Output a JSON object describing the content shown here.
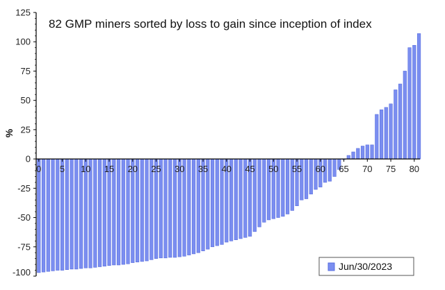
{
  "chart_data": {
    "type": "bar",
    "title": "82 GMP miners sorted by loss to gain since inception of index",
    "xlabel": "",
    "ylabel": "%",
    "ylim": [
      -100,
      125
    ],
    "yticks": [
      -100,
      -75,
      -50,
      -25,
      0,
      25,
      50,
      75,
      100,
      125
    ],
    "xlim": [
      0,
      81
    ],
    "xticks": [
      0,
      5,
      10,
      15,
      20,
      25,
      30,
      35,
      40,
      45,
      50,
      55,
      60,
      65,
      70,
      75,
      80
    ],
    "grid": false,
    "legend": {
      "position": "bottom-right",
      "entries": [
        "Jun/30/2023"
      ]
    },
    "colors": {
      "bar": "#7b8ef0",
      "bar_stroke": "#5a6fe0",
      "axis": "#000000"
    },
    "categories": [
      0,
      1,
      2,
      3,
      4,
      5,
      6,
      7,
      8,
      9,
      10,
      11,
      12,
      13,
      14,
      15,
      16,
      17,
      18,
      19,
      20,
      21,
      22,
      23,
      24,
      25,
      26,
      27,
      28,
      29,
      30,
      31,
      32,
      33,
      34,
      35,
      36,
      37,
      38,
      39,
      40,
      41,
      42,
      43,
      44,
      45,
      46,
      47,
      48,
      49,
      50,
      51,
      52,
      53,
      54,
      55,
      56,
      57,
      58,
      59,
      60,
      61,
      62,
      63,
      64,
      65,
      66,
      67,
      68,
      69,
      70,
      71,
      72,
      73,
      74,
      75,
      76,
      77,
      78,
      79,
      80,
      81
    ],
    "series": [
      {
        "name": "Jun/30/2023",
        "values": [
          -97,
          -96.5,
          -96,
          -95.5,
          -95,
          -95,
          -94.5,
          -94,
          -94,
          -93.5,
          -93,
          -93,
          -92.5,
          -92,
          -91.5,
          -91,
          -90.5,
          -90.5,
          -90,
          -89.5,
          -88.5,
          -88,
          -87.5,
          -87,
          -86,
          -85,
          -84.5,
          -84.5,
          -84,
          -84,
          -83.5,
          -83,
          -82,
          -81,
          -80,
          -78.5,
          -77,
          -75,
          -74,
          -73,
          -71,
          -70,
          -69,
          -68,
          -67,
          -66,
          -62,
          -58,
          -54,
          -52,
          -51,
          -50,
          -49,
          -47,
          -44,
          -40,
          -35,
          -34,
          -30,
          -26,
          -24,
          -20,
          -19,
          -15,
          -9,
          0,
          3,
          6,
          9,
          11,
          12,
          12,
          38,
          42,
          44,
          47,
          59,
          64,
          75,
          95,
          97,
          107
        ]
      }
    ]
  }
}
